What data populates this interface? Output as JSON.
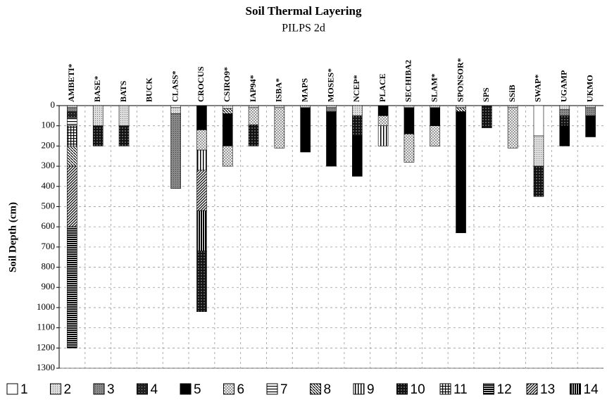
{
  "chart_data": {
    "type": "stacked-layers",
    "title": "Soil Thermal Layering",
    "subtitle": "PILPS 2d",
    "y_label": "Soil Depth (cm)",
    "ylim": [
      0,
      1300
    ],
    "y_inverted": true,
    "yticks": [
      0,
      100,
      200,
      300,
      400,
      500,
      600,
      700,
      800,
      900,
      1000,
      1100,
      1200,
      1300
    ],
    "grid": true,
    "legend": [
      "1",
      "2",
      "3",
      "4",
      "5",
      "6",
      "7",
      "8",
      "9",
      "10",
      "11",
      "12",
      "13",
      "14"
    ],
    "categories": [
      "AMBETI*",
      "BASE*",
      "BATS",
      "BUCK",
      "CLASS*",
      "CROCUS",
      "CSIRO9*",
      "IAP94*",
      "ISBA*",
      "MAPS",
      "MOSES*",
      "NCEP*",
      "PLACE",
      "SECHIBA2",
      "SLAM*",
      "SPONSOR*",
      "SPS",
      "SSiB",
      "SWAP*",
      "UGAMP",
      "UKMO"
    ],
    "layers": [
      [
        {
          "type": 2,
          "thickness": 10
        },
        {
          "type": 3,
          "thickness": 20
        },
        {
          "type": 4,
          "thickness": 30
        },
        {
          "type": 7,
          "thickness": 40
        },
        {
          "type": 11,
          "thickness": 100
        },
        {
          "type": 8,
          "thickness": 100
        },
        {
          "type": 13,
          "thickness": 300
        },
        {
          "type": 12,
          "thickness": 600
        }
      ],
      [
        {
          "type": 2,
          "thickness": 100
        },
        {
          "type": 10,
          "thickness": 100
        }
      ],
      [
        {
          "type": 2,
          "thickness": 100
        },
        {
          "type": 10,
          "thickness": 100
        }
      ],
      [],
      [
        {
          "type": 1,
          "thickness": 10
        },
        {
          "type": 2,
          "thickness": 30
        },
        {
          "type": 3,
          "thickness": 370
        }
      ],
      [
        {
          "type": 5,
          "thickness": 120
        },
        {
          "type": 6,
          "thickness": 100
        },
        {
          "type": 9,
          "thickness": 100
        },
        {
          "type": 13,
          "thickness": 200
        },
        {
          "type": 14,
          "thickness": 200
        },
        {
          "type": 10,
          "thickness": 300
        }
      ],
      [
        {
          "type": 2,
          "thickness": 15
        },
        {
          "type": 8,
          "thickness": 25
        },
        {
          "type": 5,
          "thickness": 160
        },
        {
          "type": 6,
          "thickness": 100
        }
      ],
      [
        {
          "type": 2,
          "thickness": 10
        },
        {
          "type": 6,
          "thickness": 85
        },
        {
          "type": 10,
          "thickness": 105
        }
      ],
      [
        {
          "type": 2,
          "thickness": 10
        },
        {
          "type": 6,
          "thickness": 200
        }
      ],
      [
        {
          "type": 2,
          "thickness": 10
        },
        {
          "type": 5,
          "thickness": 220
        }
      ],
      [
        {
          "type": 2,
          "thickness": 10
        },
        {
          "type": 3,
          "thickness": 20
        },
        {
          "type": 5,
          "thickness": 270
        }
      ],
      [
        {
          "type": 2,
          "thickness": 50
        },
        {
          "type": 10,
          "thickness": 100
        },
        {
          "type": 5,
          "thickness": 200
        }
      ],
      [
        {
          "type": 5,
          "thickness": 50
        },
        {
          "type": 6,
          "thickness": 50
        },
        {
          "type": 9,
          "thickness": 100
        }
      ],
      [
        {
          "type": 2,
          "thickness": 10
        },
        {
          "type": 5,
          "thickness": 130
        },
        {
          "type": 6,
          "thickness": 140
        }
      ],
      [
        {
          "type": 2,
          "thickness": 10
        },
        {
          "type": 5,
          "thickness": 90
        },
        {
          "type": 6,
          "thickness": 100
        }
      ],
      [
        {
          "type": 2,
          "thickness": 10
        },
        {
          "type": 8,
          "thickness": 20
        },
        {
          "type": 5,
          "thickness": 600
        }
      ],
      [
        {
          "type": 10,
          "thickness": 110
        }
      ],
      [
        {
          "type": 2,
          "thickness": 10
        },
        {
          "type": 6,
          "thickness": 200
        }
      ],
      [
        {
          "type": 1,
          "thickness": 150
        },
        {
          "type": 2,
          "thickness": 150
        },
        {
          "type": 10,
          "thickness": 150
        }
      ],
      [
        {
          "type": 2,
          "thickness": 20
        },
        {
          "type": 3,
          "thickness": 30
        },
        {
          "type": 10,
          "thickness": 50
        },
        {
          "type": 5,
          "thickness": 100
        }
      ],
      [
        {
          "type": 2,
          "thickness": 10
        },
        {
          "type": 3,
          "thickness": 40
        },
        {
          "type": 5,
          "thickness": 105
        }
      ]
    ]
  }
}
